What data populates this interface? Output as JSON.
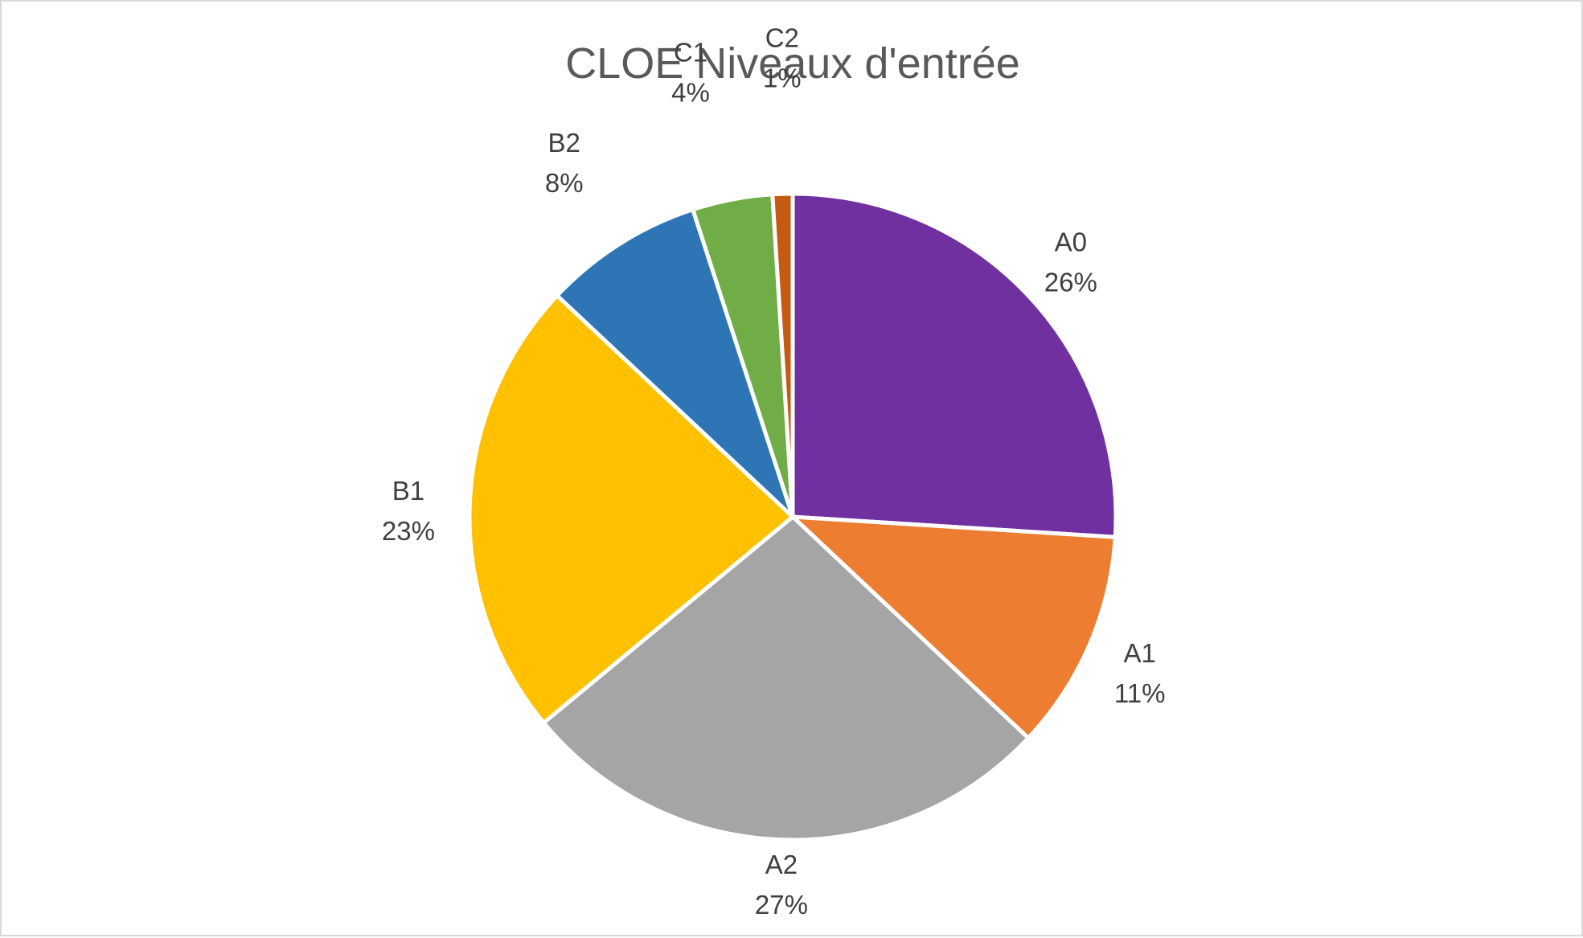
{
  "chart_data": {
    "type": "pie",
    "title": "CLOE Niveaux d'entrée",
    "categories": [
      "A0",
      "A1",
      "A2",
      "B1",
      "B2",
      "C1",
      "C2"
    ],
    "values": [
      26,
      11,
      27,
      23,
      8,
      4,
      1
    ],
    "labels": [
      "26%",
      "11%",
      "27%",
      "23%",
      "8%",
      "4%",
      "1%"
    ],
    "colors": [
      "#7030A0",
      "#ED7D31",
      "#A5A5A5",
      "#FFC000",
      "#2E75B6",
      "#70AD47",
      "#C55A11"
    ],
    "start": "top, clockwise",
    "legend": "none (category names on slice labels)"
  }
}
